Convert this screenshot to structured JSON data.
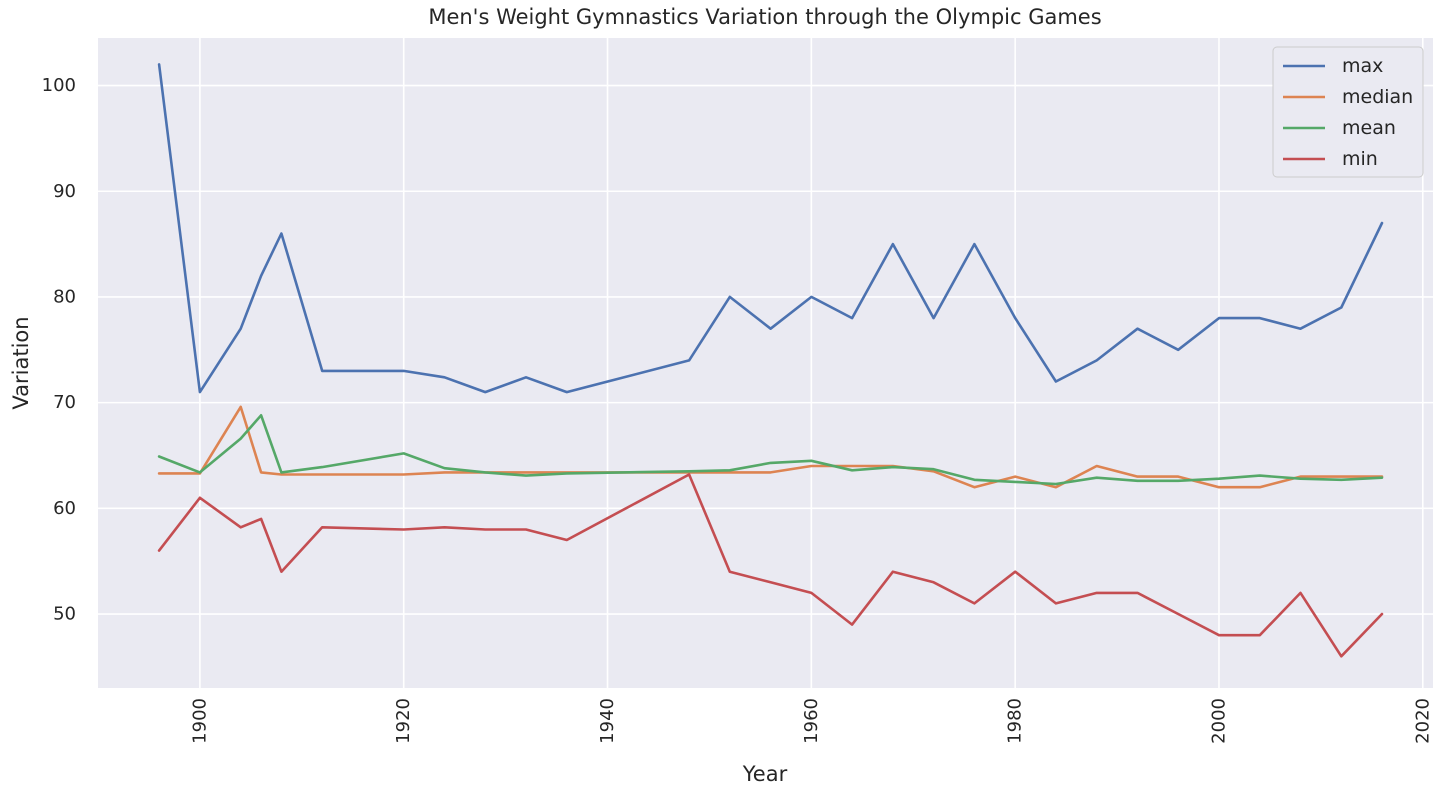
{
  "chart_data": {
    "type": "line",
    "title": "Men's Weight Gymnastics Variation through the Olympic Games",
    "xlabel": "Year",
    "ylabel": "Variation",
    "xlim": [
      1890,
      2021
    ],
    "ylim": [
      43,
      104.5
    ],
    "xticks": [
      1900,
      1920,
      1940,
      1960,
      1980,
      2000,
      2020
    ],
    "yticks": [
      50,
      60,
      70,
      80,
      90,
      100
    ],
    "grid": true,
    "legend_position": "top-right",
    "colors": {
      "background": "#EAEAF2",
      "grid": "#FFFFFF",
      "text": "#262626"
    },
    "x": [
      1896,
      1900,
      1904,
      1906,
      1908,
      1912,
      1920,
      1924,
      1928,
      1932,
      1936,
      1948,
      1952,
      1956,
      1960,
      1964,
      1968,
      1972,
      1976,
      1980,
      1984,
      1988,
      1992,
      1996,
      2000,
      2004,
      2008,
      2012,
      2016
    ],
    "series": [
      {
        "name": "max",
        "color": "#4C72B0",
        "values": [
          102,
          71,
          77,
          82,
          86,
          73,
          73,
          72.4,
          71,
          72.4,
          71,
          74,
          80,
          77,
          80,
          78,
          85,
          78,
          85,
          78,
          72,
          74,
          77,
          75,
          78,
          78,
          77,
          79,
          87
        ]
      },
      {
        "name": "median",
        "color": "#DD8452",
        "values": [
          63.3,
          63.3,
          69.6,
          63.4,
          63.2,
          63.2,
          63.2,
          63.4,
          63.4,
          63.4,
          63.4,
          63.4,
          63.4,
          63.4,
          64,
          64,
          64,
          63.5,
          62,
          63,
          62,
          64,
          63,
          63,
          62,
          62,
          63,
          63,
          63
        ]
      },
      {
        "name": "mean",
        "color": "#55A868",
        "values": [
          64.9,
          63.4,
          66.6,
          68.8,
          63.4,
          63.9,
          65.2,
          63.8,
          63.4,
          63.1,
          63.3,
          63.5,
          63.6,
          64.3,
          64.5,
          63.6,
          63.9,
          63.7,
          62.7,
          62.5,
          62.3,
          62.9,
          62.6,
          62.6,
          62.8,
          63.1,
          62.8,
          62.7,
          62.9
        ]
      },
      {
        "name": "min",
        "color": "#C44E52",
        "values": [
          56,
          61,
          58.2,
          59,
          54,
          58.2,
          58,
          58.2,
          58,
          58,
          57,
          63.2,
          54,
          53,
          52,
          49,
          54,
          53,
          51,
          54,
          51,
          52,
          52,
          50,
          48,
          48,
          52,
          46,
          50
        ]
      }
    ]
  }
}
